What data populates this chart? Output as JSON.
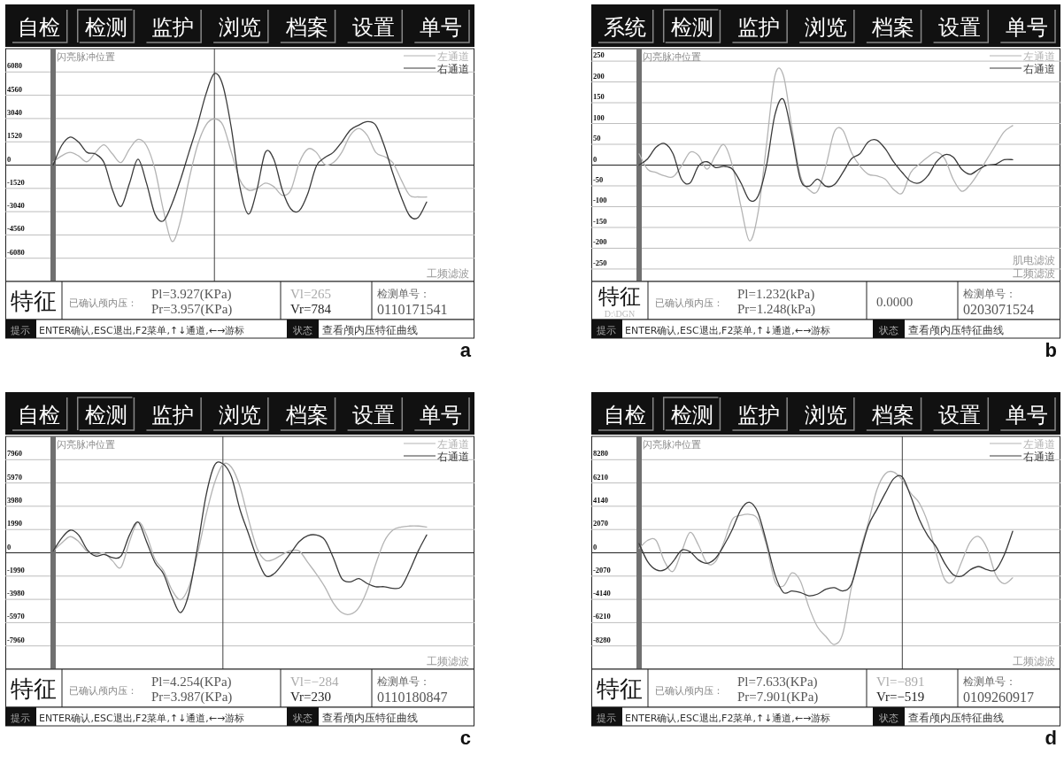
{
  "chart_data": [
    {
      "type": "line",
      "categories": [
        null,
        null,
        null,
        null,
        null,
        null,
        null,
        null,
        null,
        null,
        null,
        null,
        null,
        null,
        null,
        null,
        null,
        null,
        null,
        null,
        null,
        null,
        null,
        null,
        null,
        null,
        null,
        null,
        null,
        null,
        null,
        null,
        null,
        null,
        null,
        null,
        null,
        null,
        null,
        null,
        null,
        null,
        null,
        null,
        null
      ],
      "series": [
        {
          "name": "左通道",
          "color": "#b4b4b4",
          "values": [
            200,
            600,
            830,
            600,
            220,
            830,
            1320,
            720,
            160,
            1050,
            1680,
            1270,
            -290,
            -2970,
            -4980,
            -3640,
            -960,
            1270,
            2610,
            3020,
            2610,
            830,
            -960,
            -1630,
            -1520,
            -1180,
            -1410,
            -1970,
            -1630,
            160,
            1050,
            830,
            40,
            160,
            830,
            1940,
            2390,
            1940,
            830,
            560,
            160,
            -960,
            -1970,
            -2080,
            -2080
          ]
        },
        {
          "name": "右通道",
          "color": "#3a3a3a",
          "values": [
            0,
            1270,
            1830,
            1500,
            830,
            720,
            160,
            -1630,
            -2700,
            -1180,
            380,
            -1180,
            -3200,
            -3640,
            -2530,
            -960,
            830,
            2610,
            4630,
            5970,
            5190,
            2390,
            -1410,
            -3200,
            -1630,
            830,
            380,
            -1630,
            -2860,
            -2970,
            -1860,
            -70,
            490,
            830,
            1500,
            2280,
            2610,
            2840,
            2610,
            1270,
            -510,
            -2080,
            -3310,
            -3420,
            -2410
          ]
        }
      ],
      "ylim": [
        -7600,
        7600
      ],
      "yticks": [
        6080,
        4560,
        3040,
        1520,
        0,
        -1520,
        -3040,
        -4560,
        -6080
      ],
      "grid": "y",
      "legend": "top right",
      "annotations": [
        "自检",
        "检测",
        "监护",
        "浏览",
        "档案",
        "设置",
        "单号",
        "特征",
        "已确认颅内压：",
        "Pl=3.927(KPa)",
        "Pr=3.957(KPa)",
        "Vl=265",
        "Vr=784",
        "检测单号：",
        "0110171541",
        "提示",
        "ENTER确认,ESC退出,F2菜单,↑↓通道,←→游标",
        "状态",
        "查看颅内压特征曲线",
        "工频滤波",
        "闪亮脉冲位置",
        "a"
      ]
    },
    {
      "type": "line",
      "categories": [
        null,
        null,
        null,
        null,
        null,
        null,
        null,
        null,
        null,
        null,
        null,
        null,
        null,
        null,
        null,
        null,
        null,
        null,
        null,
        null,
        null,
        null,
        null,
        null,
        null,
        null,
        null,
        null,
        null,
        null,
        null,
        null,
        null,
        null,
        null,
        null,
        null,
        null,
        null,
        null,
        null,
        null,
        null,
        null,
        null
      ],
      "series": [
        {
          "name": "左通道",
          "color": "#b4b4b4",
          "values": [
            27,
            -10,
            -18,
            -26,
            -28,
            -2,
            31,
            23,
            -10,
            23,
            49,
            -2,
            -100,
            -182,
            -116,
            48,
            215,
            215,
            89,
            -26,
            -59,
            -63,
            -2,
            80,
            84,
            31,
            -2,
            -22,
            -26,
            -34,
            -59,
            -67,
            -18,
            2,
            19,
            31,
            15,
            -34,
            -63,
            -47,
            -18,
            15,
            48,
            80,
            95
          ]
        },
        {
          "name": "右通道",
          "color": "#3a3a3a",
          "values": [
            0,
            15,
            43,
            52,
            27,
            -34,
            -43,
            -2,
            8,
            -6,
            -3,
            -10,
            -43,
            -84,
            -75,
            -2,
            121,
            158,
            72,
            -34,
            -51,
            -34,
            -51,
            -47,
            -18,
            15,
            27,
            56,
            60,
            39,
            7,
            -18,
            -39,
            -43,
            -26,
            7,
            25,
            19,
            -10,
            -22,
            -10,
            0,
            2,
            13,
            13
          ]
        }
      ],
      "ylim": [
        -280,
        280
      ],
      "yticks": [
        250,
        200,
        150,
        100,
        50,
        0,
        -50,
        -100,
        -150,
        -200,
        -250
      ],
      "grid": "y",
      "legend": "top right",
      "annotations": [
        "系统",
        "检测",
        "监护",
        "浏览",
        "档案",
        "设置",
        "单号",
        "特征",
        "D:\\DGN",
        "已确认颅内压：",
        "Pl=1.232(kPa)",
        "Pr=1.248(kPa)",
        "0.0000",
        "检测单号：",
        "0203071524",
        "提示",
        "ENTER确认,ESC退出,F2菜单,↑↓通道,←→游标",
        "状态",
        "查看颅内压特征曲线",
        "肌电滤波",
        "工频滤波",
        "闪亮脉冲位置",
        "b"
      ]
    },
    {
      "type": "line",
      "categories": [
        null,
        null,
        null,
        null,
        null,
        null,
        null,
        null,
        null,
        null,
        null,
        null,
        null,
        null,
        null,
        null,
        null,
        null,
        null,
        null,
        null,
        null,
        null,
        null,
        null,
        null,
        null,
        null,
        null,
        null,
        null,
        null,
        null,
        null,
        null,
        null,
        null,
        null,
        null,
        null,
        null,
        null,
        null,
        null,
        null
      ],
      "series": [
        {
          "name": "左通道",
          "color": "#b4b4b4",
          "values": [
            140,
            830,
            1380,
            970,
            140,
            -140,
            0,
            -690,
            -1240,
            970,
            2630,
            1520,
            -550,
            -1520,
            -3180,
            -4010,
            -2900,
            -140,
            3180,
            5940,
            7550,
            7320,
            5670,
            2900,
            410,
            -640,
            -550,
            -140,
            190,
            140,
            -830,
            -1800,
            -2900,
            -4280,
            -5110,
            -5250,
            -4700,
            -3180,
            -970,
            970,
            1930,
            2210,
            2290,
            2290,
            2210
          ]
        },
        {
          "name": "右通道",
          "color": "#3a3a3a",
          "values": [
            140,
            1240,
            1930,
            1520,
            280,
            -280,
            -140,
            -410,
            -280,
            1520,
            2630,
            970,
            -830,
            -1800,
            -3730,
            -5110,
            -3460,
            410,
            4840,
            7460,
            7600,
            6500,
            3730,
            1660,
            -410,
            -1930,
            -1800,
            -970,
            0,
            970,
            1460,
            1520,
            1110,
            -410,
            -2210,
            -2490,
            -2210,
            -2630,
            -2900,
            -2900,
            -3040,
            -2900,
            -1520,
            140,
            1520
          ]
        }
      ],
      "ylim": [
        -9950,
        9950
      ],
      "yticks": [
        7960,
        5970,
        3980,
        1990,
        0,
        -1990,
        -3980,
        -5970,
        -7960
      ],
      "grid": "y",
      "legend": "top right",
      "annotations": [
        "自检",
        "检测",
        "监护",
        "浏览",
        "档案",
        "设置",
        "单号",
        "特征",
        "已确认颅内压：",
        "Pl=4.254(KPa)",
        "Pr=3.987(KPa)",
        "Vl=−284",
        "Vr=230",
        "检测单号：",
        "0110180847",
        "提示",
        "ENTER确认,ESC退出,F2菜单,↑↓通道,←→游标",
        "状态",
        "查看颅内压特征曲线",
        "工频滤波",
        "闪亮脉冲位置",
        "c"
      ]
    },
    {
      "type": "line",
      "categories": [
        null,
        null,
        null,
        null,
        null,
        null,
        null,
        null,
        null,
        null,
        null,
        null,
        null,
        null,
        null,
        null,
        null,
        null,
        null,
        null,
        null,
        null,
        null,
        null,
        null,
        null,
        null,
        null,
        null,
        null,
        null,
        null,
        null,
        null,
        null,
        null,
        null,
        null,
        null,
        null,
        null,
        null,
        null,
        null,
        null
      ],
      "series": [
        {
          "name": "左通道",
          "color": "#b4b4b4",
          "values": [
            380,
            1100,
            1100,
            -780,
            -1650,
            90,
            1820,
            670,
            -930,
            -780,
            960,
            2980,
            3330,
            3420,
            2980,
            670,
            -2520,
            -2950,
            -1790,
            -2520,
            -4830,
            -6570,
            -7440,
            -8160,
            -7150,
            -3100,
            90,
            2690,
            5590,
            7030,
            7180,
            6460,
            5300,
            4430,
            2690,
            -60,
            -2370,
            -2520,
            -780,
            960,
            1450,
            380,
            -1940,
            -2750,
            -2230
          ]
        },
        {
          "name": "右通道",
          "color": "#3a3a3a",
          "values": [
            810,
            -780,
            -1510,
            -1510,
            -780,
            230,
            90,
            -640,
            -930,
            -490,
            670,
            2110,
            3850,
            4490,
            3560,
            960,
            -1940,
            -3530,
            -3390,
            -3530,
            -3820,
            -3680,
            -3240,
            -3100,
            -3390,
            -2810,
            -200,
            2400,
            3850,
            5300,
            6600,
            6750,
            5010,
            2980,
            1530,
            520,
            -930,
            -1940,
            -2080,
            -1510,
            -1220,
            -1510,
            -1510,
            -200,
            1910
          ]
        }
      ],
      "ylim": [
        -10350,
        10350
      ],
      "yticks": [
        8280,
        6210,
        4140,
        2070,
        0,
        -2070,
        -4140,
        -6210,
        -8280
      ],
      "grid": "y",
      "legend": "top right",
      "annotations": [
        "自检",
        "检测",
        "监护",
        "浏览",
        "档案",
        "设置",
        "单号",
        "特征",
        "已确认颅内压：",
        "Pl=7.633(KPa)",
        "Pr=7.901(KPa)",
        "Vl=−891",
        "Vr=−519",
        "检测单号：",
        "0109260917",
        "提示",
        "ENTER确认,ESC退出,F2菜单,↑↓通道,←→游标",
        "状态",
        "查看颅内压特征曲线",
        "工频滤波",
        "闪亮脉冲位置",
        "d"
      ]
    }
  ]
}
